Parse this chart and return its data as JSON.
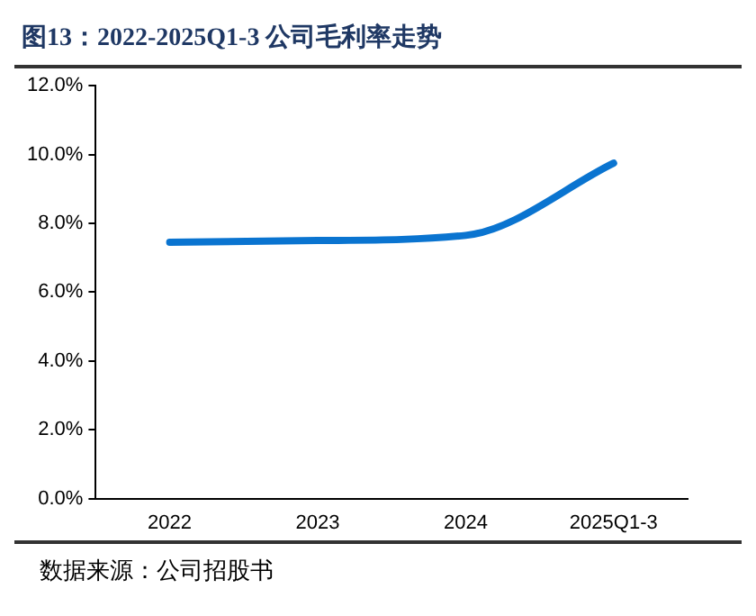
{
  "chart_data": {
    "type": "line",
    "title": "图13：2022-2025Q1-3 公司毛利率走势",
    "annotations": [
      "数据来源：公司招股书"
    ],
    "categories": [
      "2022",
      "2023",
      "2024",
      "2025Q1-3"
    ],
    "series": [
      {
        "color": "#0a74d0",
        "values": [
          7.45,
          7.5,
          7.65,
          9.75
        ]
      }
    ],
    "ylim": [
      0,
      12
    ],
    "yticks": [
      {
        "value": 0,
        "label": "0.0%"
      },
      {
        "value": 2,
        "label": "2.0%"
      },
      {
        "value": 4,
        "label": "4.0%"
      },
      {
        "value": 6,
        "label": "6.0%"
      },
      {
        "value": 8,
        "label": "8.0%"
      },
      {
        "value": 10,
        "label": "10.0%"
      },
      {
        "value": 12,
        "label": "12.0%"
      }
    ],
    "grid": false,
    "legend": false,
    "marker": "none",
    "line_style": "solid"
  }
}
